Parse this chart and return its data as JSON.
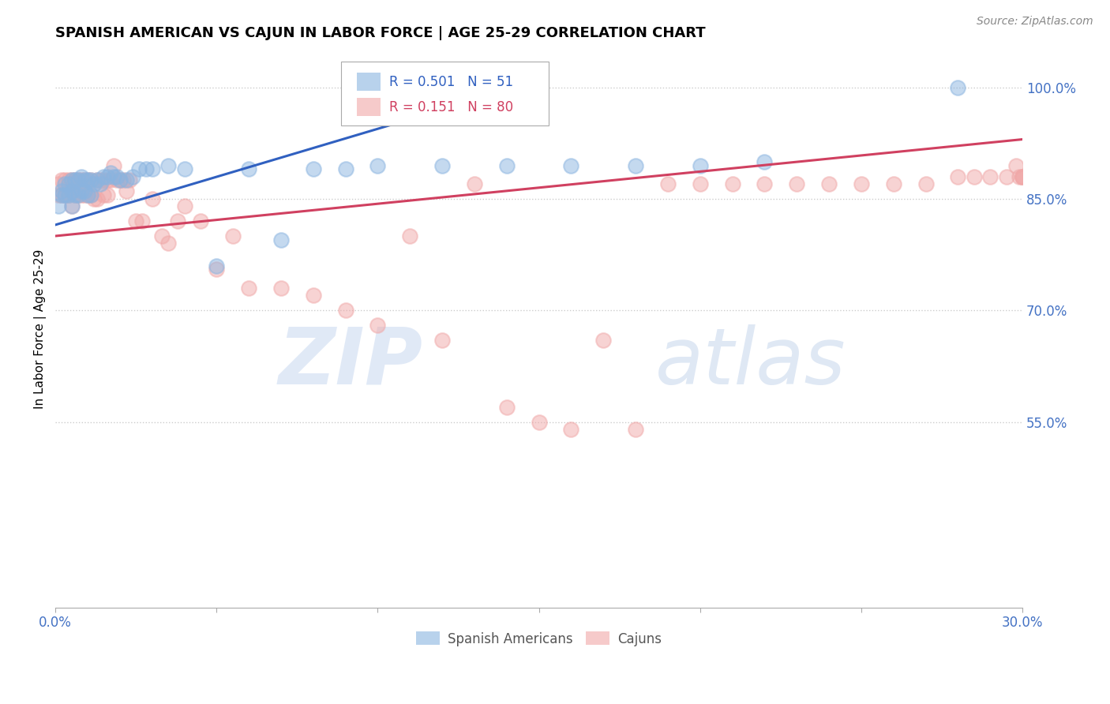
{
  "title": "SPANISH AMERICAN VS CAJUN IN LABOR FORCE | AGE 25-29 CORRELATION CHART",
  "source": "Source: ZipAtlas.com",
  "ylabel": "In Labor Force | Age 25-29",
  "xlim": [
    0.0,
    0.3
  ],
  "ylim": [
    0.3,
    1.05
  ],
  "x_tick_positions": [
    0.0,
    0.05,
    0.1,
    0.15,
    0.2,
    0.25,
    0.3
  ],
  "x_tick_labels": [
    "0.0%",
    "",
    "",
    "",
    "",
    "",
    "30.0%"
  ],
  "y_ticks": [
    0.55,
    0.7,
    0.85,
    1.0
  ],
  "y_tick_labels": [
    "55.0%",
    "70.0%",
    "85.0%",
    "100.0%"
  ],
  "blue_R": 0.501,
  "blue_N": 51,
  "pink_R": 0.151,
  "pink_N": 80,
  "blue_color": "#8ab4e0",
  "pink_color": "#f0a8a8",
  "blue_line_color": "#3060c0",
  "pink_line_color": "#d04060",
  "legend_label_blue": "Spanish Americans",
  "legend_label_pink": "Cajuns",
  "blue_scatter_x": [
    0.001,
    0.002,
    0.002,
    0.003,
    0.003,
    0.004,
    0.004,
    0.005,
    0.005,
    0.005,
    0.006,
    0.006,
    0.007,
    0.007,
    0.008,
    0.008,
    0.009,
    0.009,
    0.01,
    0.01,
    0.011,
    0.011,
    0.012,
    0.013,
    0.014,
    0.015,
    0.016,
    0.017,
    0.018,
    0.019,
    0.02,
    0.022,
    0.024,
    0.026,
    0.028,
    0.03,
    0.035,
    0.04,
    0.05,
    0.06,
    0.07,
    0.08,
    0.09,
    0.1,
    0.12,
    0.14,
    0.16,
    0.18,
    0.2,
    0.22,
    0.28
  ],
  "blue_scatter_y": [
    0.84,
    0.86,
    0.855,
    0.87,
    0.855,
    0.87,
    0.855,
    0.875,
    0.86,
    0.84,
    0.875,
    0.855,
    0.875,
    0.855,
    0.88,
    0.86,
    0.875,
    0.86,
    0.875,
    0.855,
    0.875,
    0.855,
    0.87,
    0.875,
    0.87,
    0.88,
    0.88,
    0.885,
    0.88,
    0.88,
    0.875,
    0.875,
    0.88,
    0.89,
    0.89,
    0.89,
    0.895,
    0.89,
    0.76,
    0.89,
    0.795,
    0.89,
    0.89,
    0.895,
    0.895,
    0.895,
    0.895,
    0.895,
    0.895,
    0.9,
    1.0
  ],
  "pink_scatter_x": [
    0.001,
    0.001,
    0.002,
    0.002,
    0.003,
    0.003,
    0.004,
    0.004,
    0.005,
    0.005,
    0.005,
    0.006,
    0.006,
    0.007,
    0.007,
    0.008,
    0.008,
    0.009,
    0.009,
    0.01,
    0.01,
    0.011,
    0.011,
    0.012,
    0.012,
    0.013,
    0.013,
    0.014,
    0.015,
    0.015,
    0.016,
    0.016,
    0.017,
    0.018,
    0.019,
    0.02,
    0.021,
    0.022,
    0.023,
    0.025,
    0.027,
    0.03,
    0.033,
    0.035,
    0.038,
    0.04,
    0.045,
    0.05,
    0.055,
    0.06,
    0.07,
    0.08,
    0.09,
    0.1,
    0.11,
    0.12,
    0.13,
    0.14,
    0.15,
    0.16,
    0.17,
    0.18,
    0.19,
    0.2,
    0.21,
    0.22,
    0.23,
    0.24,
    0.25,
    0.26,
    0.27,
    0.28,
    0.285,
    0.29,
    0.295,
    0.298,
    0.299,
    0.3,
    0.3,
    0.3
  ],
  "pink_scatter_y": [
    0.87,
    0.855,
    0.875,
    0.855,
    0.875,
    0.855,
    0.875,
    0.855,
    0.875,
    0.86,
    0.84,
    0.875,
    0.855,
    0.875,
    0.855,
    0.875,
    0.855,
    0.875,
    0.855,
    0.875,
    0.855,
    0.875,
    0.855,
    0.87,
    0.85,
    0.875,
    0.85,
    0.875,
    0.875,
    0.855,
    0.875,
    0.855,
    0.875,
    0.895,
    0.875,
    0.875,
    0.875,
    0.86,
    0.875,
    0.82,
    0.82,
    0.85,
    0.8,
    0.79,
    0.82,
    0.84,
    0.82,
    0.755,
    0.8,
    0.73,
    0.73,
    0.72,
    0.7,
    0.68,
    0.8,
    0.66,
    0.87,
    0.57,
    0.55,
    0.54,
    0.66,
    0.54,
    0.87,
    0.87,
    0.87,
    0.87,
    0.87,
    0.87,
    0.87,
    0.87,
    0.87,
    0.88,
    0.88,
    0.88,
    0.88,
    0.895,
    0.88,
    0.88,
    0.88,
    0.88
  ]
}
